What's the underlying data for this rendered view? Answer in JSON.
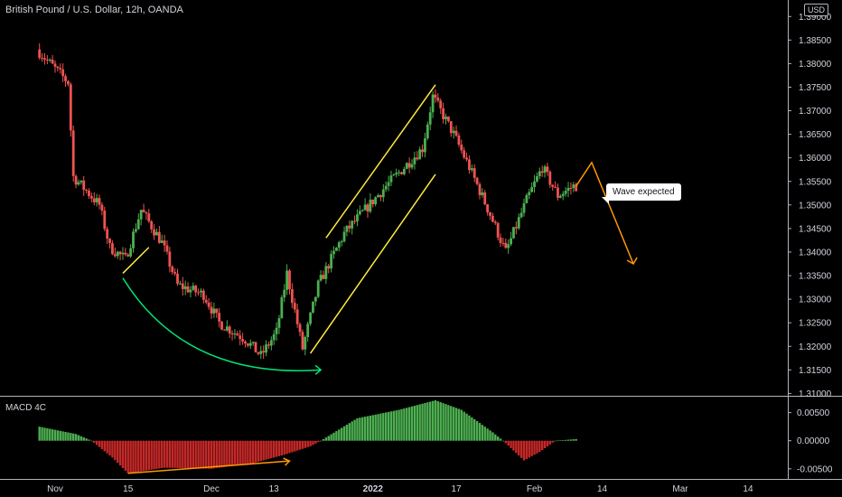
{
  "header": {
    "title": "British Pound / U.S. Dollar, 12h, OANDA",
    "currency": "USD"
  },
  "macd_panel": {
    "title": "MACD 4C"
  },
  "annotation": {
    "callout_text": "Wave expected"
  },
  "colors": {
    "bullish": "#26a69a",
    "candle_up": "#4caf50",
    "candle_down": "#ef5350",
    "hist_pos": "#4caf50",
    "hist_neg": "#c62828",
    "channel": "#ffeb3b",
    "arc": "#00e676",
    "projection": "#ff9800"
  },
  "chart_data": [
    {
      "type": "candlestick",
      "title": "British Pound / U.S. Dollar, 12h, OANDA",
      "ylim": [
        1.3095,
        1.3935
      ],
      "y_ticks": [
        "1.39000",
        "1.38500",
        "1.38000",
        "1.37500",
        "1.37000",
        "1.36500",
        "1.36000",
        "1.35500",
        "1.35000",
        "1.34500",
        "1.34000",
        "1.33500",
        "1.33000",
        "1.32500",
        "1.32000",
        "1.31500",
        "1.31000"
      ],
      "x_ticks": [
        "Nov",
        "15",
        "Dec",
        "13",
        "2022",
        "17",
        "Feb",
        "14",
        "Mar",
        "14"
      ],
      "price_path": [
        [
          "Oct 29",
          1.383
        ],
        [
          "Nov 4",
          1.376
        ],
        [
          "Nov 5",
          1.356
        ],
        [
          "Nov 10",
          1.35
        ],
        [
          "Nov 12",
          1.341
        ],
        [
          "Nov 15",
          1.3385
        ],
        [
          "Nov 18",
          1.349
        ],
        [
          "Nov 22",
          1.342
        ],
        [
          "Nov 25",
          1.333
        ],
        [
          "Nov 30",
          1.331
        ],
        [
          "Dec 3",
          1.325
        ],
        [
          "Dec 8",
          1.3215
        ],
        [
          "Dec 11",
          1.318
        ],
        [
          "Dec 14",
          1.323
        ],
        [
          "Dec 16",
          1.3355
        ],
        [
          "Dec 19",
          1.3195
        ],
        [
          "Dec 22",
          1.333
        ],
        [
          "Dec 27",
          1.344
        ],
        [
          "Jan 4",
          1.354
        ],
        [
          "Jan 11",
          1.362
        ],
        [
          "Jan 13",
          1.373
        ],
        [
          "Jan 17",
          1.365
        ],
        [
          "Jan 20",
          1.358
        ],
        [
          "Jan 24",
          1.348
        ],
        [
          "Jan 27",
          1.34
        ],
        [
          "Jan 31",
          1.351
        ],
        [
          "Feb 3",
          1.358
        ],
        [
          "Feb 6",
          1.352
        ],
        [
          "Feb 9",
          1.354
        ]
      ]
    },
    {
      "type": "bar",
      "title": "MACD 4C",
      "ylim": [
        -0.0068,
        0.008
      ],
      "y_ticks": [
        "0.00500",
        "0.00000",
        "-0.00500"
      ],
      "histogram_path": [
        [
          "Oct 29",
          0.0025
        ],
        [
          "Nov 5",
          0.0012
        ],
        [
          "Nov 8",
          0.0
        ],
        [
          "Nov 12",
          -0.003
        ],
        [
          "Nov 15",
          -0.0058
        ],
        [
          "Nov 22",
          -0.0048
        ],
        [
          "Dec 1",
          -0.005
        ],
        [
          "Dec 9",
          -0.004
        ],
        [
          "Dec 15",
          -0.0025
        ],
        [
          "Dec 20",
          -0.001
        ],
        [
          "Dec 22",
          0.0
        ],
        [
          "Dec 29",
          0.004
        ],
        [
          "Jan 6",
          0.0055
        ],
        [
          "Jan 13",
          0.0072
        ],
        [
          "Jan 18",
          0.0055
        ],
        [
          "Jan 24",
          0.0015
        ],
        [
          "Jan 26",
          0.0
        ],
        [
          "Jan 30",
          -0.0035
        ],
        [
          "Feb 2",
          -0.002
        ],
        [
          "Feb 5",
          0.0
        ],
        [
          "Feb 9",
          0.0003
        ]
      ]
    }
  ]
}
